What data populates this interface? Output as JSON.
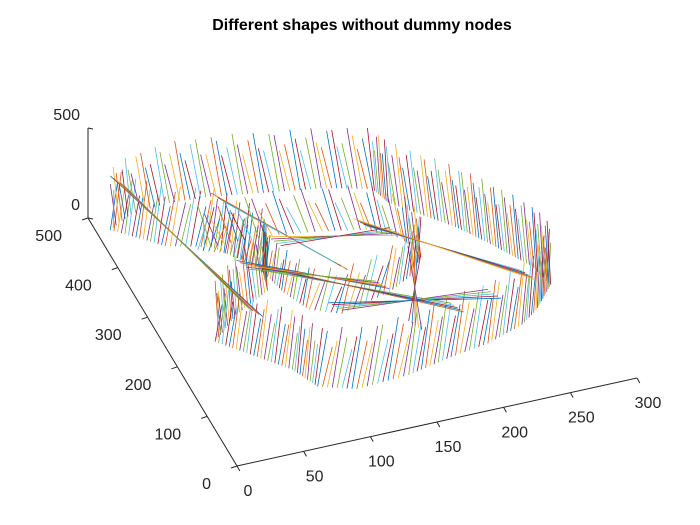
{
  "chart_data": {
    "type": "line",
    "title": "Different shapes without dummy nodes",
    "xlabel": "",
    "ylabel": "",
    "zlabel": "",
    "xlim": [
      0,
      300
    ],
    "ylim": [
      0,
      500
    ],
    "zlim": [
      0,
      500
    ],
    "xticks": [
      "0",
      "50",
      "100",
      "150",
      "200",
      "250",
      "300"
    ],
    "yticks": [
      "0",
      "100",
      "200",
      "300",
      "400",
      "500"
    ],
    "zticks": [
      "0",
      "500"
    ],
    "grid": false,
    "legend": "none",
    "series_count": 90,
    "note_shapes": [
      "outer star-shaped wall",
      "inner star-shaped wall",
      "crossing connector segments"
    ],
    "outer_polygon": [
      [
        10,
        470
      ],
      [
        40,
        420
      ],
      [
        70,
        400
      ],
      [
        95,
        340
      ],
      [
        90,
        300
      ],
      [
        60,
        270
      ],
      [
        35,
        230
      ],
      [
        55,
        190
      ],
      [
        75,
        150
      ],
      [
        85,
        110
      ],
      [
        110,
        90
      ],
      [
        150,
        95
      ],
      [
        185,
        110
      ],
      [
        215,
        120
      ],
      [
        245,
        140
      ],
      [
        260,
        160
      ],
      [
        280,
        200
      ],
      [
        275,
        240
      ],
      [
        265,
        270
      ],
      [
        255,
        300
      ],
      [
        240,
        340
      ],
      [
        220,
        380
      ],
      [
        205,
        410
      ],
      [
        200,
        440
      ],
      [
        170,
        460
      ],
      [
        130,
        475
      ],
      [
        90,
        490
      ],
      [
        60,
        495
      ],
      [
        30,
        490
      ]
    ],
    "inner_polygon": [
      [
        60,
        400
      ],
      [
        80,
        380
      ],
      [
        95,
        330
      ],
      [
        100,
        290
      ],
      [
        110,
        250
      ],
      [
        130,
        230
      ],
      [
        150,
        240
      ],
      [
        170,
        250
      ],
      [
        190,
        270
      ],
      [
        205,
        300
      ],
      [
        200,
        340
      ],
      [
        180,
        370
      ],
      [
        150,
        385
      ],
      [
        120,
        395
      ],
      [
        90,
        400
      ]
    ],
    "connectors": [
      [
        [
          10,
          470
        ],
        [
          75,
          250
        ]
      ],
      [
        [
          70,
          400
        ],
        [
          150,
          300
        ]
      ],
      [
        [
          90,
          300
        ],
        [
          200,
          340
        ]
      ],
      [
        [
          215,
          120
        ],
        [
          130,
          230
        ]
      ],
      [
        [
          185,
          110
        ],
        [
          95,
          330
        ]
      ],
      [
        [
          245,
          140
        ],
        [
          180,
          370
        ]
      ],
      [
        [
          150,
          95
        ],
        [
          205,
          300
        ]
      ],
      [
        [
          60,
          270
        ],
        [
          170,
          250
        ]
      ]
    ],
    "colors": [
      "#0072BD",
      "#D95319",
      "#EDB120",
      "#7E2F8E",
      "#77AC30",
      "#4DBEEE",
      "#A2142F"
    ]
  }
}
